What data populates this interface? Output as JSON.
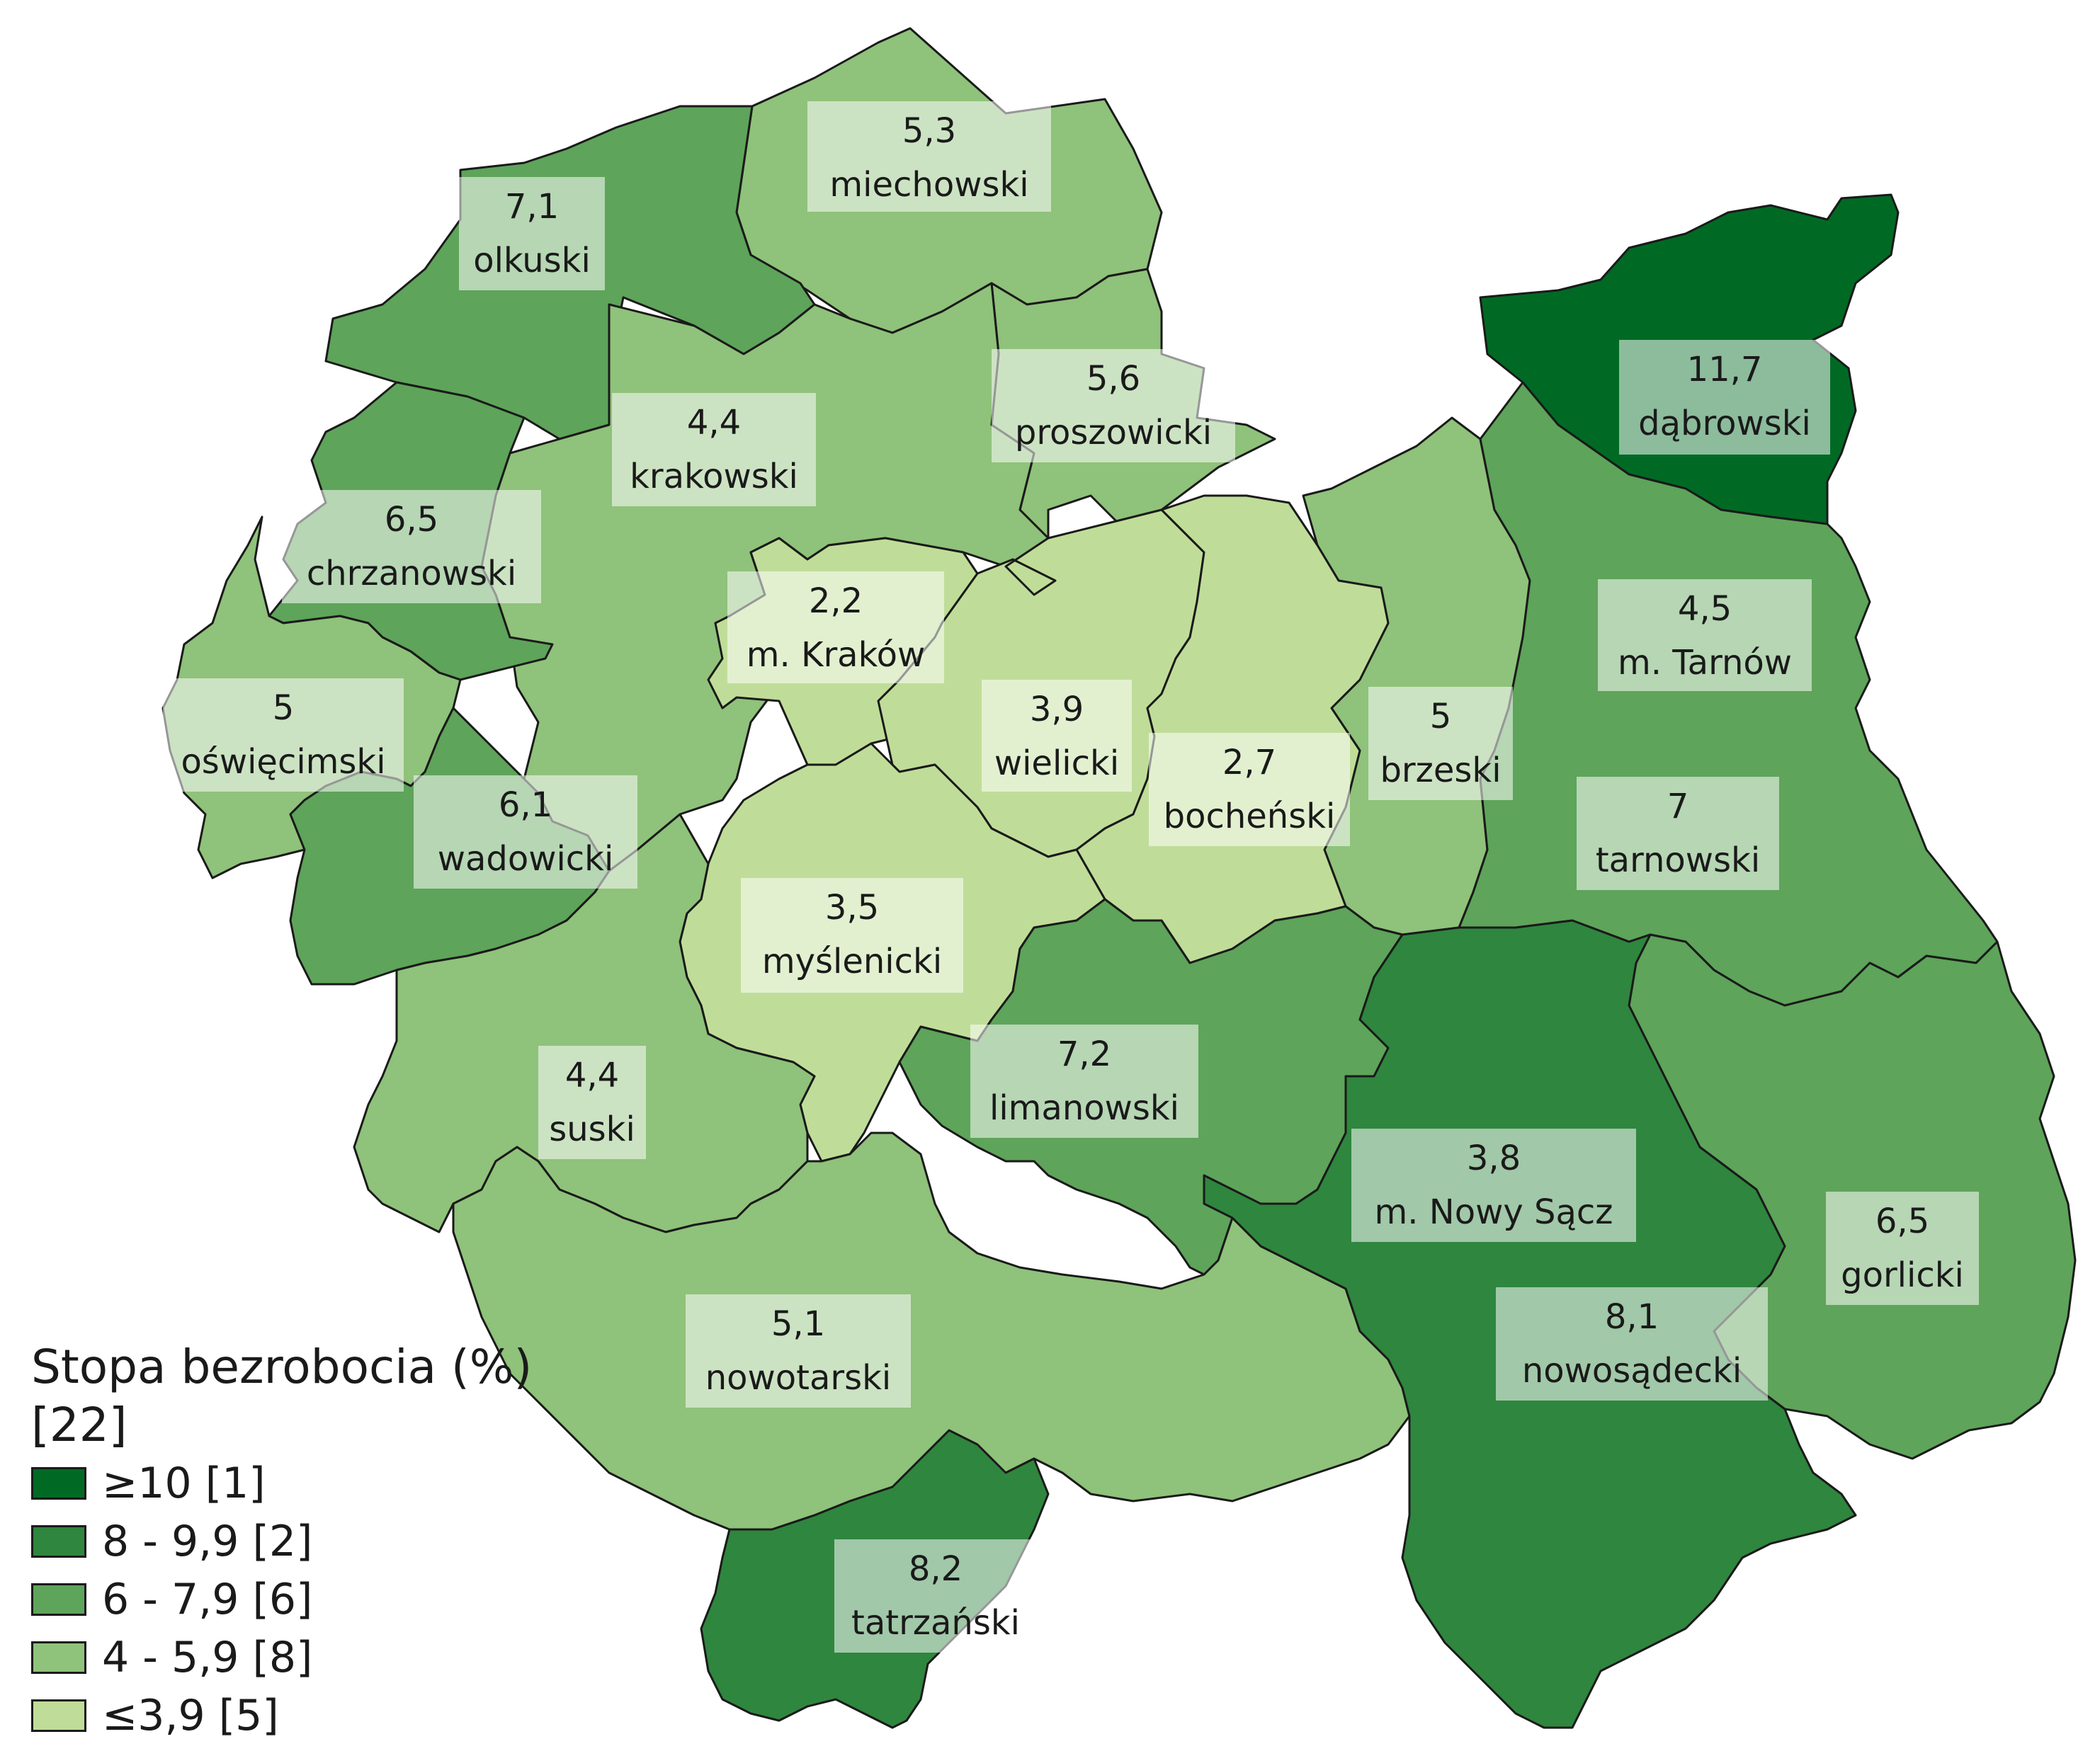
{
  "map": {
    "legend_title": "Stopa bezrobocia (%) [22]",
    "classes": [
      {
        "label": "≥10 [1]",
        "color": "#006a24"
      },
      {
        "label": "8 - 9,9 [2]",
        "color": "#2f863e"
      },
      {
        "label": "6 - 7,9 [6]",
        "color": "#5ea45a"
      },
      {
        "label": "4 - 5,9 [8]",
        "color": "#8fc27a"
      },
      {
        "label": "≤3,9 [5]",
        "color": "#bfdd98"
      }
    ],
    "regions": [
      {
        "id": "miechowski",
        "name": "miechowski",
        "value": "5,3",
        "class": 3
      },
      {
        "id": "olkuski",
        "name": "olkuski",
        "value": "7,1",
        "class": 2
      },
      {
        "id": "proszowicki",
        "name": "proszowicki",
        "value": "5,6",
        "class": 3
      },
      {
        "id": "dabrowski",
        "name": "dąbrowski",
        "value": "11,7",
        "class": 0
      },
      {
        "id": "krakowski",
        "name": "krakowski",
        "value": "4,4",
        "class": 3
      },
      {
        "id": "chrzanowski",
        "name": "chrzanowski",
        "value": "6,5",
        "class": 2
      },
      {
        "id": "m-krakow",
        "name": "m. Kraków",
        "value": "2,2",
        "class": 4
      },
      {
        "id": "m-tarnow",
        "name": "m. Tarnów",
        "value": "4,5",
        "class": 3
      },
      {
        "id": "oswiecimski",
        "name": "oświęcimski",
        "value": "5",
        "class": 3
      },
      {
        "id": "wielicki",
        "name": "wielicki",
        "value": "3,9",
        "class": 4
      },
      {
        "id": "brzeski",
        "name": "brzeski",
        "value": "5",
        "class": 3
      },
      {
        "id": "bochenski",
        "name": "bocheński",
        "value": "2,7",
        "class": 4
      },
      {
        "id": "wadowicki",
        "name": "wadowicki",
        "value": "6,1",
        "class": 2
      },
      {
        "id": "tarnowski",
        "name": "tarnowski",
        "value": "7",
        "class": 2
      },
      {
        "id": "myslenicki",
        "name": "myślenicki",
        "value": "3,5",
        "class": 4
      },
      {
        "id": "suski",
        "name": "suski",
        "value": "4,4",
        "class": 3
      },
      {
        "id": "limanowski",
        "name": "limanowski",
        "value": "7,2",
        "class": 2
      },
      {
        "id": "m-nowy-sacz",
        "name": "m. Nowy Sącz",
        "value": "3,8",
        "class": 4
      },
      {
        "id": "gorlicki",
        "name": "gorlicki",
        "value": "6,5",
        "class": 2
      },
      {
        "id": "nowotarski",
        "name": "nowotarski",
        "value": "5,1",
        "class": 3
      },
      {
        "id": "nowosadecki",
        "name": "nowosądecki",
        "value": "8,1",
        "class": 1
      },
      {
        "id": "tatrzanski",
        "name": "tatrzański",
        "value": "8,2",
        "class": 1
      }
    ]
  }
}
